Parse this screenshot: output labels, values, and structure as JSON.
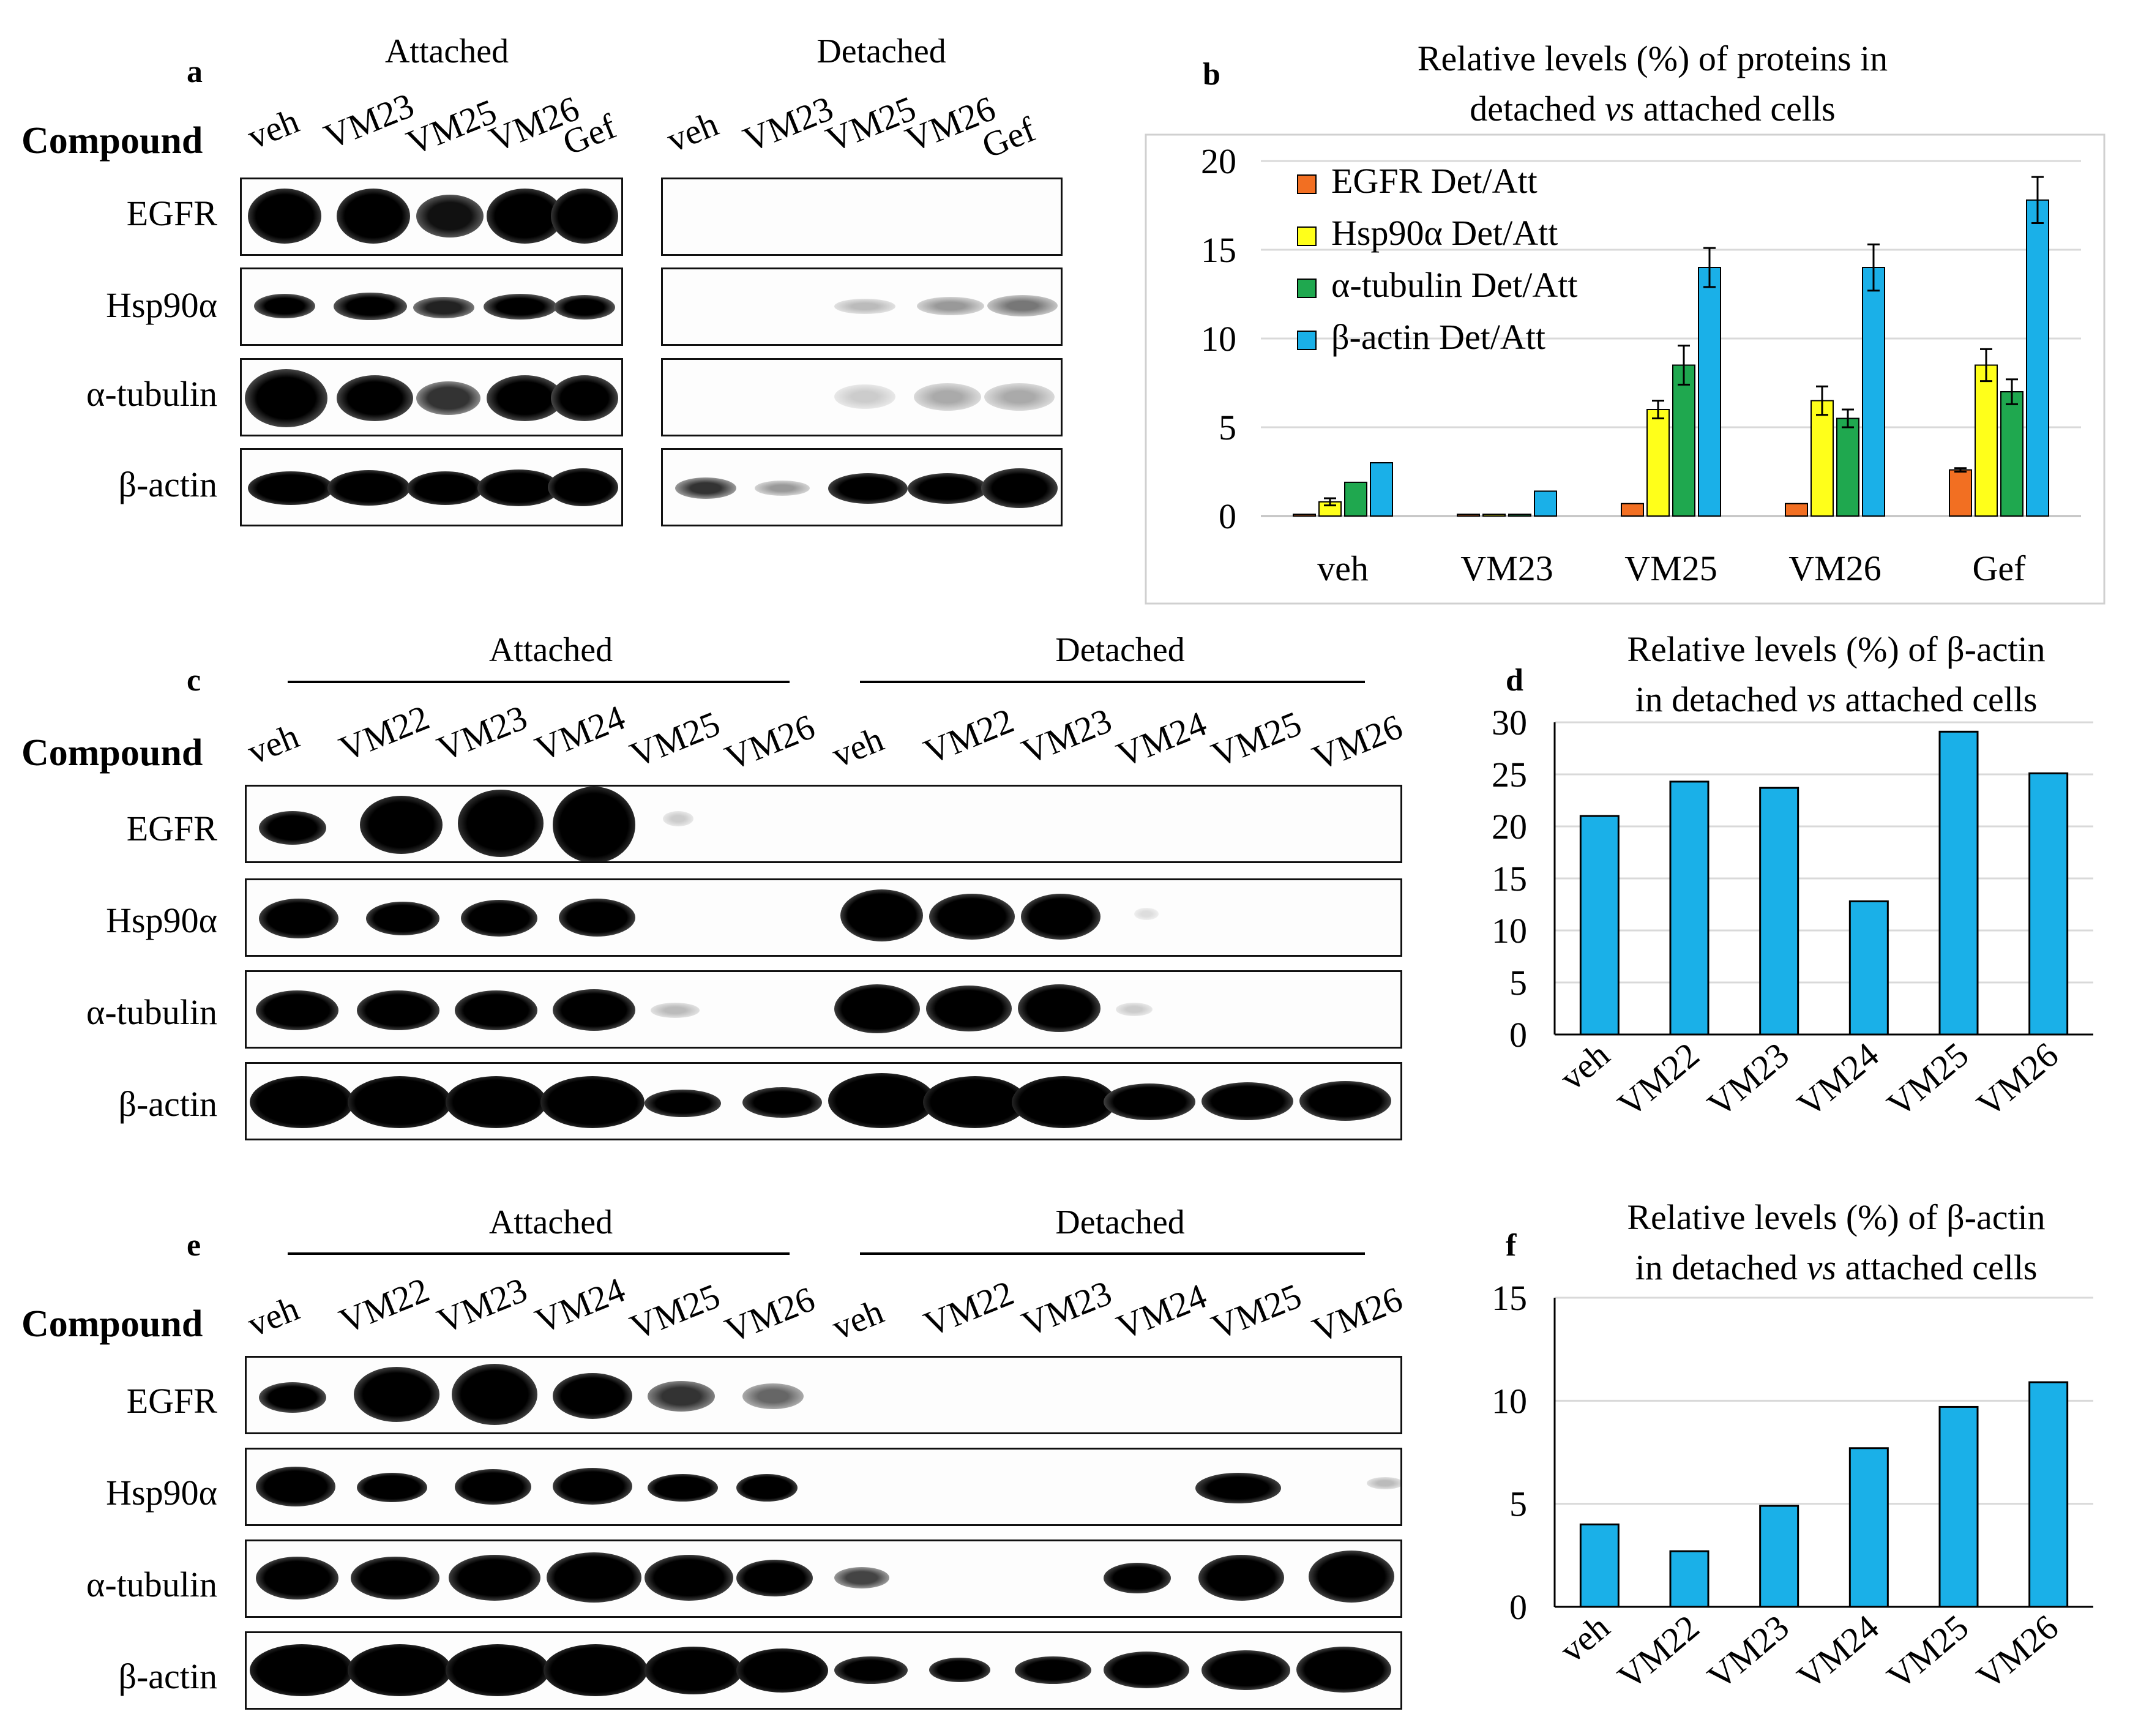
{
  "panels": {
    "a": {
      "label": "a",
      "compound_label": "Compound",
      "attached_label": "Attached",
      "detached_label": "Detached",
      "attached_lanes": [
        "veh",
        "VM23",
        "VM25",
        "VM26",
        "Gef"
      ],
      "detached_lanes": [
        "veh",
        "VM23",
        "VM25",
        "VM26",
        "Gef"
      ],
      "rows": [
        "EGFR",
        "Hsp90α",
        "α-tubulin",
        "β-actin"
      ]
    },
    "c": {
      "label": "c",
      "compound_label": "Compound",
      "attached_label": "Attached",
      "detached_label": "Detached",
      "attached_lanes": [
        "veh",
        "VM22",
        "VM23",
        "VM24",
        "VM25",
        "VM26"
      ],
      "detached_lanes": [
        "veh",
        "VM22",
        "VM23",
        "VM24",
        "VM25",
        "VM26"
      ],
      "rows": [
        "EGFR",
        "Hsp90α",
        "α-tubulin",
        "β-actin"
      ]
    },
    "e": {
      "label": "e",
      "compound_label": "Compound",
      "attached_label": "Attached",
      "detached_label": "Detached",
      "attached_lanes": [
        "veh",
        "VM22",
        "VM23",
        "VM24",
        "VM25",
        "VM26"
      ],
      "detached_lanes": [
        "veh",
        "VM22",
        "VM23",
        "VM24",
        "VM25",
        "VM26"
      ],
      "rows": [
        "EGFR",
        "Hsp90α",
        "α-tubulin",
        "β-actin"
      ]
    }
  },
  "colors": {
    "egfr": "#f26f22",
    "hsp90": "#ffff1a",
    "tubulin": "#1fa84f",
    "actin": "#1ab0e8"
  },
  "chart_data": [
    {
      "panel": "b",
      "type": "bar",
      "title_line1": "Relative levels (%) of proteins in",
      "title_line2_pre": "detached ",
      "title_line2_em": "vs",
      "title_line2_post": " attached cells",
      "categories": [
        "veh",
        "VM23",
        "VM25",
        "VM26",
        "Gef"
      ],
      "series": [
        {
          "name": "EGFR Det/Att",
          "values": [
            0.1,
            0.1,
            0.7,
            0.7,
            2.6
          ],
          "errors": [
            0,
            0,
            0,
            0,
            0.1
          ]
        },
        {
          "name": "Hsp90α Det/Att",
          "values": [
            0.8,
            0.1,
            6.0,
            6.5,
            8.5
          ],
          "errors": [
            0.2,
            0,
            0.5,
            0.8,
            0.9
          ]
        },
        {
          "name": "α-tubulin Det/Att",
          "values": [
            1.9,
            0.1,
            8.5,
            5.5,
            7.0
          ],
          "errors": [
            0,
            0,
            1.1,
            0.5,
            0.7
          ]
        },
        {
          "name": "β-actin Det/Att",
          "values": [
            3.0,
            1.4,
            14.0,
            14.0,
            17.8
          ],
          "errors": [
            0,
            0,
            1.1,
            1.3,
            1.3
          ]
        }
      ],
      "ylim": [
        0,
        20
      ],
      "yticks": [
        0,
        5,
        10,
        15,
        20
      ]
    },
    {
      "panel": "d",
      "type": "bar",
      "title_line1": "Relative levels (%) of β-actin",
      "title_line2_pre": "in detached ",
      "title_line2_em": "vs",
      "title_line2_post": " attached cells",
      "categories": [
        "veh",
        "VM22",
        "VM23",
        "VM24",
        "VM25",
        "VM26"
      ],
      "values": [
        21,
        24.3,
        23.7,
        12.8,
        29.1,
        25.1
      ],
      "ylim": [
        0,
        30
      ],
      "yticks": [
        0,
        5,
        10,
        15,
        20,
        25,
        30
      ]
    },
    {
      "panel": "f",
      "type": "bar",
      "title_line1": "Relative levels (%) of β-actin",
      "title_line2_pre": "in detached ",
      "title_line2_em": "vs",
      "title_line2_post": " attached cells",
      "categories": [
        "veh",
        "VM22",
        "VM23",
        "VM24",
        "VM25",
        "VM26"
      ],
      "values": [
        4.0,
        2.7,
        4.9,
        7.7,
        9.7,
        10.9
      ],
      "ylim": [
        0,
        15
      ],
      "yticks": [
        0,
        5,
        10,
        15
      ]
    }
  ]
}
